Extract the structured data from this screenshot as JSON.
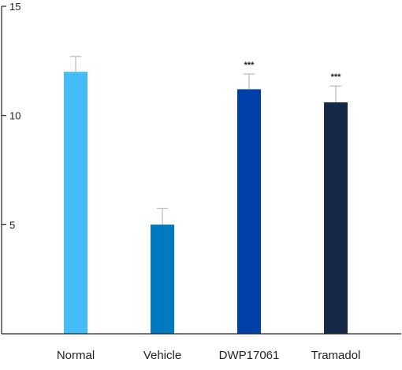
{
  "chart_data": {
    "type": "bar",
    "title": "",
    "xlabel": "",
    "ylabel": "",
    "categories": [
      "Normal",
      "Vehicle",
      "DWP17061",
      "Tramadol"
    ],
    "values": [
      12.0,
      5.0,
      11.2,
      10.6
    ],
    "error_plus": [
      0.7,
      0.75,
      0.7,
      0.75
    ],
    "significance": [
      "",
      "",
      "***",
      "***"
    ],
    "colors": [
      "#45BCF8",
      "#0079C1",
      "#0040A8",
      "#172A45"
    ],
    "ylim": [
      0,
      15
    ],
    "yticks": [
      5,
      10,
      15
    ],
    "grid": false,
    "legend": "none"
  }
}
